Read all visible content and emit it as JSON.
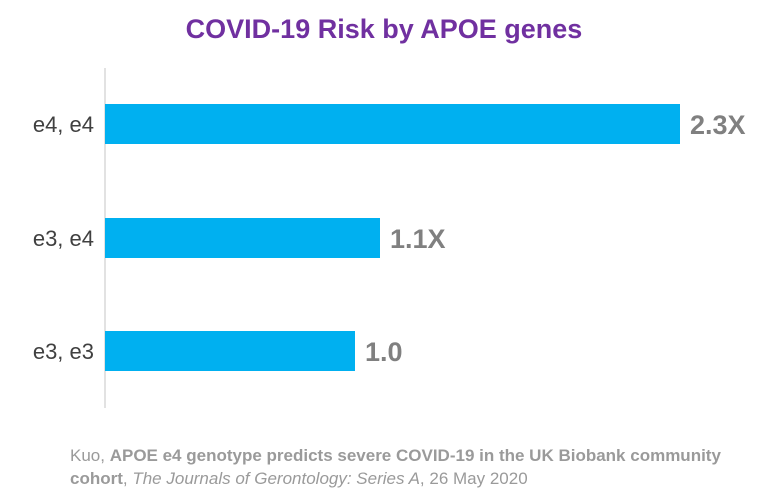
{
  "chart_data": {
    "type": "bar",
    "orientation": "horizontal",
    "title": "COVID-19 Risk by APOE genes",
    "categories": [
      "e4, e4",
      "e3, e4",
      "e3, e3"
    ],
    "values": [
      2.3,
      1.1,
      1.0
    ],
    "data_labels": [
      "2.3X",
      "1.1X",
      "1.0"
    ],
    "xlim": [
      0,
      2.5
    ],
    "grid": false,
    "legend": "none",
    "bar_color": "#00B0F0",
    "title_color": "#7030A0"
  },
  "citation": {
    "author": "Kuo, ",
    "article": "APOE e4 genotype predicts severe COVID-19 in the UK Biobank community cohort",
    "separator": ", ",
    "journal": "The Journals of Gerontology: Series A",
    "date": ", 26 May 2020"
  }
}
